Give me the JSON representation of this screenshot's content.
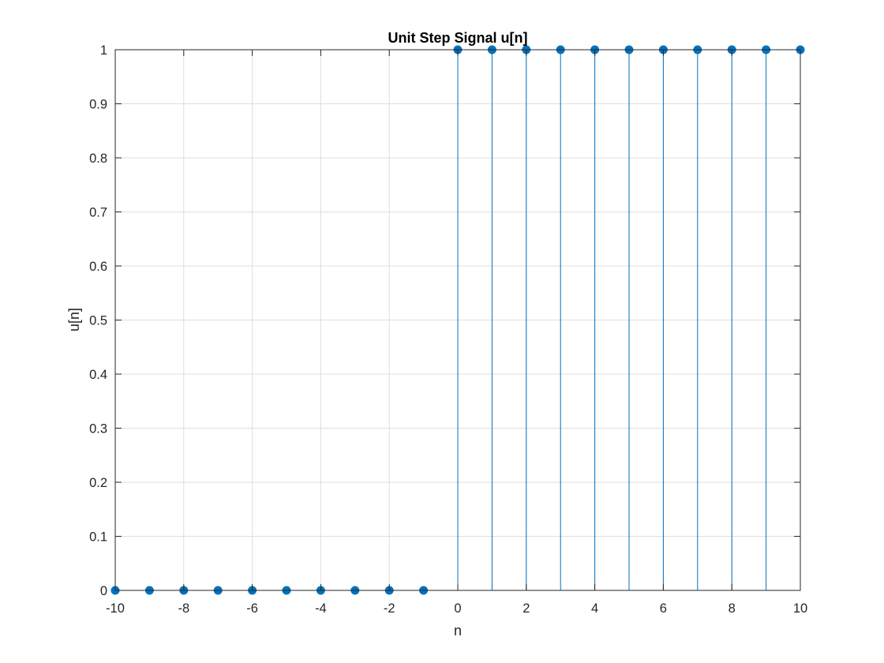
{
  "chart_data": {
    "type": "stem",
    "title": "Unit Step Signal u[n]",
    "xlabel": "n",
    "ylabel": "u[n]",
    "xlim": [
      -10,
      10
    ],
    "ylim": [
      0,
      1
    ],
    "xticks": [
      -10,
      -8,
      -6,
      -4,
      -2,
      0,
      2,
      4,
      6,
      8,
      10
    ],
    "xtick_labels": [
      "-10",
      "-8",
      "-6",
      "-4",
      "-2",
      "0",
      "2",
      "4",
      "6",
      "8",
      "10"
    ],
    "yticks": [
      0,
      0.1,
      0.2,
      0.3,
      0.4,
      0.5,
      0.6,
      0.7,
      0.8,
      0.9,
      1
    ],
    "ytick_labels": [
      "0",
      "0.1",
      "0.2",
      "0.3",
      "0.4",
      "0.5",
      "0.6",
      "0.7",
      "0.8",
      "0.9",
      "1"
    ],
    "grid": true,
    "series": [
      {
        "x": [
          -10,
          -9,
          -8,
          -7,
          -6,
          -5,
          -4,
          -3,
          -2,
          -1,
          0,
          1,
          2,
          3,
          4,
          5,
          6,
          7,
          8,
          9,
          10
        ],
        "y": [
          0,
          0,
          0,
          0,
          0,
          0,
          0,
          0,
          0,
          0,
          1,
          1,
          1,
          1,
          1,
          1,
          1,
          1,
          1,
          1,
          1
        ],
        "color": "#0072BD"
      }
    ]
  }
}
